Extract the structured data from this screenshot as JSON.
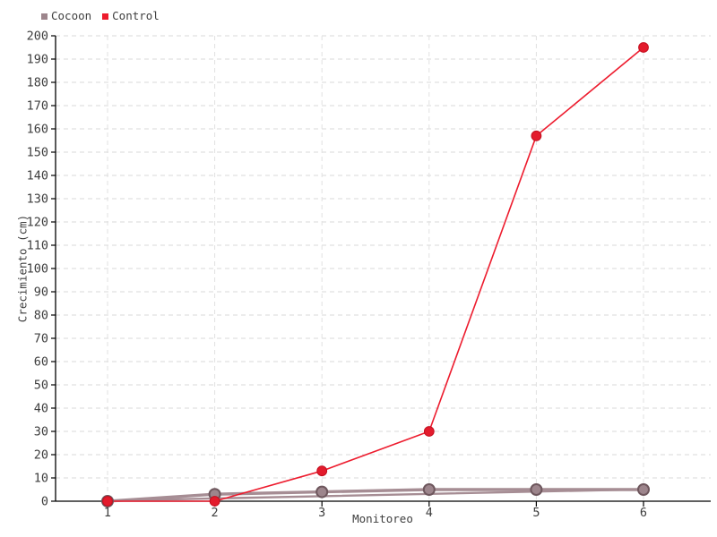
{
  "legend": {
    "items": [
      {
        "label": "Cocoon",
        "color": "#9d858c"
      },
      {
        "label": "Control",
        "color": "#ed1b2c"
      }
    ]
  },
  "axes": {
    "x_label": "Monitoreo",
    "y_label": "Crecimiento (cm)",
    "x_ticks": [
      "1",
      "2",
      "3",
      "4",
      "5",
      "6"
    ],
    "y_ticks": [
      "0",
      "10",
      "20",
      "30",
      "40",
      "50",
      "60",
      "70",
      "80",
      "90",
      "100",
      "110",
      "120",
      "130",
      "140",
      "150",
      "160",
      "170",
      "180",
      "190",
      "200"
    ]
  },
  "chart_data": {
    "type": "line",
    "title": "",
    "xlabel": "Monitoreo",
    "ylabel": "Crecimiento (cm)",
    "x": [
      1,
      2,
      3,
      4,
      5,
      6
    ],
    "series": [
      {
        "name": "Cocoon",
        "values": [
          0,
          3,
          4,
          5,
          5,
          5
        ],
        "line_color": "#a68d94",
        "marker_fill": "#9d858c",
        "marker_stroke": "#6e575d",
        "trend_line": {
          "x": [
            1,
            6
          ],
          "values": [
            0.2,
            5.1
          ]
        }
      },
      {
        "name": "Control",
        "values": [
          0,
          0,
          13,
          30,
          157,
          195
        ],
        "line_color": "#ed1c2e",
        "marker_fill": "#e31b2c",
        "marker_stroke": "#c30f1f"
      }
    ],
    "ylim": [
      0,
      200
    ],
    "ytick_step": 10,
    "grid": {
      "horizontal": true,
      "vertical": true,
      "style": "dashed",
      "h_color": "#d8d8d8",
      "v_color": "#e0e0e0"
    },
    "legend_position": "top-left",
    "axis_color": "#000000",
    "tick_label_color": "#3d3d3d"
  }
}
